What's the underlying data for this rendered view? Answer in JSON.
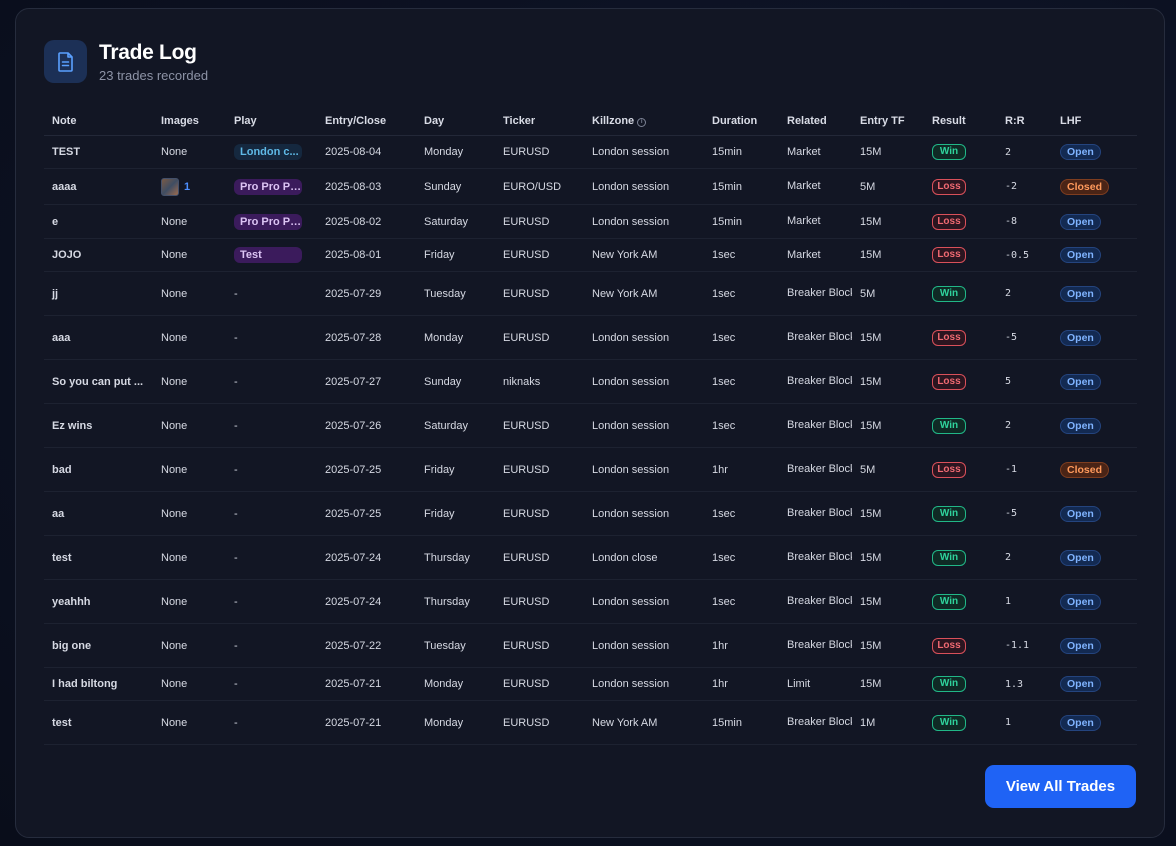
{
  "header": {
    "title": "Trade Log",
    "subtitle": "23 trades recorded",
    "icon": "document-icon"
  },
  "table": {
    "columns": [
      "Note",
      "Images",
      "Play",
      "Entry/Close",
      "Day",
      "Ticker",
      "Killzone",
      "Duration",
      "Related",
      "Entry TF",
      "Result",
      "R:R",
      "LHF"
    ],
    "rows": [
      {
        "note": "TEST",
        "images": "None",
        "play": "London c...",
        "play_color": "blue",
        "date": "2025-08-04",
        "day": "Monday",
        "ticker": "EURUSD",
        "killzone": "London session",
        "duration": "15min",
        "related": "Market",
        "tf": "15M",
        "result": "Win",
        "rr": "2",
        "lhf": "Open"
      },
      {
        "note": "aaaa",
        "images": "1",
        "play": "Pro Pro Pr...",
        "play_color": "purple",
        "date": "2025-08-03",
        "day": "Sunday",
        "ticker": "EURO/USD",
        "killzone": "London session",
        "duration": "15min",
        "related": "Market",
        "tf": "5M",
        "result": "Loss",
        "rr": "-2",
        "lhf": "Closed"
      },
      {
        "note": "e",
        "images": "None",
        "play": "Pro Pro Pr...",
        "play_color": "purple",
        "date": "2025-08-02",
        "day": "Saturday",
        "ticker": "EURUSD",
        "killzone": "London session",
        "duration": "15min",
        "related": "Market",
        "tf": "15M",
        "result": "Loss",
        "rr": "-8",
        "lhf": "Open"
      },
      {
        "note": "JOJO",
        "images": "None",
        "play": "Test",
        "play_color": "purple",
        "date": "2025-08-01",
        "day": "Friday",
        "ticker": "EURUSD",
        "killzone": "New York AM",
        "duration": "1sec",
        "related": "Market",
        "tf": "15M",
        "result": "Loss",
        "rr": "-0.5",
        "lhf": "Open"
      },
      {
        "note": "jj",
        "images": "None",
        "play": "-",
        "play_color": "",
        "date": "2025-07-29",
        "day": "Tuesday",
        "ticker": "EURUSD",
        "killzone": "New York AM",
        "duration": "1sec",
        "related": "Breaker Block",
        "tf": "5M",
        "result": "Win",
        "rr": "2",
        "lhf": "Open"
      },
      {
        "note": "aaa",
        "images": "None",
        "play": "-",
        "play_color": "",
        "date": "2025-07-28",
        "day": "Monday",
        "ticker": "EURUSD",
        "killzone": "London session",
        "duration": "1sec",
        "related": "Breaker Block",
        "tf": "15M",
        "result": "Loss",
        "rr": "-5",
        "lhf": "Open"
      },
      {
        "note": "So you can put ...",
        "images": "None",
        "play": "-",
        "play_color": "",
        "date": "2025-07-27",
        "day": "Sunday",
        "ticker": "niknaks",
        "killzone": "London session",
        "duration": "1sec",
        "related": "Breaker Block",
        "tf": "15M",
        "result": "Loss",
        "rr": "5",
        "lhf": "Open"
      },
      {
        "note": "Ez wins",
        "images": "None",
        "play": "-",
        "play_color": "",
        "date": "2025-07-26",
        "day": "Saturday",
        "ticker": "EURUSD",
        "killzone": "London session",
        "duration": "1sec",
        "related": "Breaker Block",
        "tf": "15M",
        "result": "Win",
        "rr": "2",
        "lhf": "Open"
      },
      {
        "note": "bad",
        "images": "None",
        "play": "-",
        "play_color": "",
        "date": "2025-07-25",
        "day": "Friday",
        "ticker": "EURUSD",
        "killzone": "London session",
        "duration": "1hr",
        "related": "Breaker Block",
        "tf": "5M",
        "result": "Loss",
        "rr": "-1",
        "lhf": "Closed"
      },
      {
        "note": "aa",
        "images": "None",
        "play": "-",
        "play_color": "",
        "date": "2025-07-25",
        "day": "Friday",
        "ticker": "EURUSD",
        "killzone": "London session",
        "duration": "1sec",
        "related": "Breaker Block",
        "tf": "15M",
        "result": "Win",
        "rr": "-5",
        "lhf": "Open"
      },
      {
        "note": "test",
        "images": "None",
        "play": "-",
        "play_color": "",
        "date": "2025-07-24",
        "day": "Thursday",
        "ticker": "EURUSD",
        "killzone": "London close",
        "duration": "1sec",
        "related": "Breaker Block",
        "tf": "15M",
        "result": "Win",
        "rr": "2",
        "lhf": "Open"
      },
      {
        "note": "yeahhh",
        "images": "None",
        "play": "-",
        "play_color": "",
        "date": "2025-07-24",
        "day": "Thursday",
        "ticker": "EURUSD",
        "killzone": "London session",
        "duration": "1sec",
        "related": "Breaker Block",
        "tf": "15M",
        "result": "Win",
        "rr": "1",
        "lhf": "Open"
      },
      {
        "note": "big one",
        "images": "None",
        "play": "-",
        "play_color": "",
        "date": "2025-07-22",
        "day": "Tuesday",
        "ticker": "EURUSD",
        "killzone": "London session",
        "duration": "1hr",
        "related": "Breaker Block",
        "tf": "15M",
        "result": "Loss",
        "rr": "-1.1",
        "lhf": "Open"
      },
      {
        "note": "I had biltong",
        "images": "None",
        "play": "-",
        "play_color": "",
        "date": "2025-07-21",
        "day": "Monday",
        "ticker": "EURUSD",
        "killzone": "London session",
        "duration": "1hr",
        "related": "Limit",
        "tf": "15M",
        "result": "Win",
        "rr": "1.3",
        "lhf": "Open"
      },
      {
        "note": "test",
        "images": "None",
        "play": "-",
        "play_color": "",
        "date": "2025-07-21",
        "day": "Monday",
        "ticker": "EURUSD",
        "killzone": "New York AM",
        "duration": "15min",
        "related": "Breaker Block",
        "tf": "1M",
        "result": "Win",
        "rr": "1",
        "lhf": "Open"
      }
    ]
  },
  "footer": {
    "view_all_label": "View All Trades"
  },
  "colors": {
    "accent": "#1f63f5",
    "win": "#2fd39c",
    "loss": "#f06a72",
    "open": "#7fb3ff",
    "closed": "#ff9a5c"
  }
}
